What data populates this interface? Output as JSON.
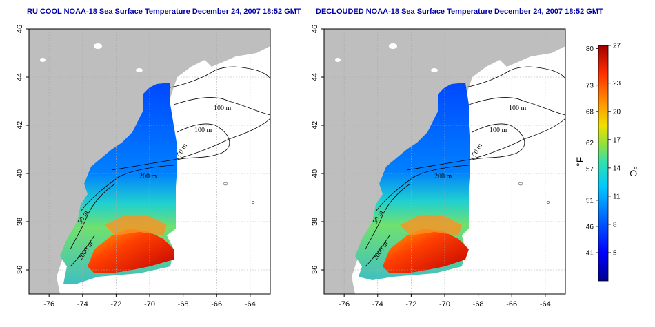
{
  "panels": [
    {
      "id": "left",
      "title": "RU COOL NOAA-18 Sea Surface Temperature December 24, 2007 18:52 GMT"
    },
    {
      "id": "right",
      "title": "DECLOUDED NOAA-18 Sea Surface Temperature December 24, 2007 18:52 GMT"
    }
  ],
  "axes": {
    "x_ticks": [
      -76,
      -74,
      -72,
      -70,
      -68,
      -66,
      -64
    ],
    "y_ticks": [
      36,
      38,
      40,
      42,
      44,
      46
    ],
    "x_range": [
      -77.2,
      -62.8
    ],
    "y_range": [
      35.0,
      46.0
    ]
  },
  "contour_labels": [
    "100 m",
    "100 m",
    "50 m",
    "200 m",
    "50 m",
    "2000 m"
  ],
  "colorbar": {
    "fahrenheit_ticks": [
      "80",
      "73",
      "68",
      "62",
      "57",
      "51",
      "46",
      "41"
    ],
    "celsius_ticks": [
      "27",
      "23",
      "20",
      "17",
      "14",
      "11",
      "8",
      "5"
    ],
    "f_unit": "°F",
    "c_unit": "°C",
    "range_c": [
      2,
      27
    ],
    "colors": [
      "#00008f",
      "#0000ff",
      "#0070ff",
      "#00c8ff",
      "#30e0b0",
      "#90e040",
      "#f0e000",
      "#ff9000",
      "#ff3000",
      "#a00000"
    ]
  },
  "colors": {
    "land": "#bebebe",
    "title": "#0000a8",
    "grid": "#aaaaaa"
  }
}
